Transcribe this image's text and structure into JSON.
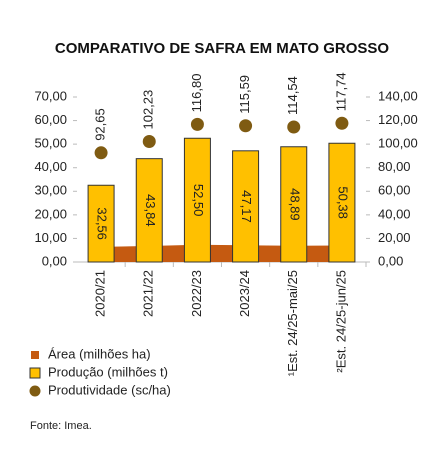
{
  "chart_data": {
    "type": "bar",
    "title": "COMPARATIVO DE SAFRA EM MATO GROSSO",
    "categories": [
      "2020/21",
      "2021/22",
      "2022/23",
      "2023/24",
      "¹Est. 24/25-mai/25",
      "²Est. 24/25-jun/25"
    ],
    "series": [
      {
        "name": "Área (milhões ha)",
        "type": "area",
        "color": "#c55a11",
        "values": [
          6.4,
          6.8,
          7.3,
          7.1,
          6.9,
          7.0
        ]
      },
      {
        "name": "Produção (milhões t)",
        "type": "bar",
        "color": "#ffc000",
        "values": [
          32.56,
          43.84,
          52.5,
          47.17,
          48.89,
          50.38
        ],
        "value_labels": [
          "32,56",
          "43,84",
          "52,50",
          "47,17",
          "48,89",
          "50,38"
        ]
      },
      {
        "name": "Produtividade (sc/ha)",
        "type": "dot",
        "axis": "y2",
        "color": "#7f5b12",
        "values": [
          92.65,
          102.23,
          116.8,
          115.59,
          114.54,
          117.74
        ],
        "value_labels": [
          "92,65",
          "102,23",
          "116,80",
          "115,59",
          "114,54",
          "117,74"
        ]
      }
    ],
    "ylim": [
      0,
      70
    ],
    "yticks": [
      {
        "value": 0,
        "label": "0,00"
      },
      {
        "value": 10,
        "label": "10,00"
      },
      {
        "value": 20,
        "label": "20,00"
      },
      {
        "value": 30,
        "label": "30,00"
      },
      {
        "value": 40,
        "label": "40,00"
      },
      {
        "value": 50,
        "label": "50,00"
      },
      {
        "value": 60,
        "label": "60,00"
      },
      {
        "value": 70,
        "label": "70,00"
      }
    ],
    "y2lim": [
      0,
      140
    ],
    "y2ticks": [
      {
        "value": 0,
        "label": "0,00"
      },
      {
        "value": 20,
        "label": "20,00"
      },
      {
        "value": 40,
        "label": "40,00"
      },
      {
        "value": 60,
        "label": "60,00"
      },
      {
        "value": 80,
        "label": "80,00"
      },
      {
        "value": 100,
        "label": "100,00"
      },
      {
        "value": 120,
        "label": "120,00"
      },
      {
        "value": 140,
        "label": "140,00"
      }
    ],
    "source": "Fonte: Imea."
  }
}
